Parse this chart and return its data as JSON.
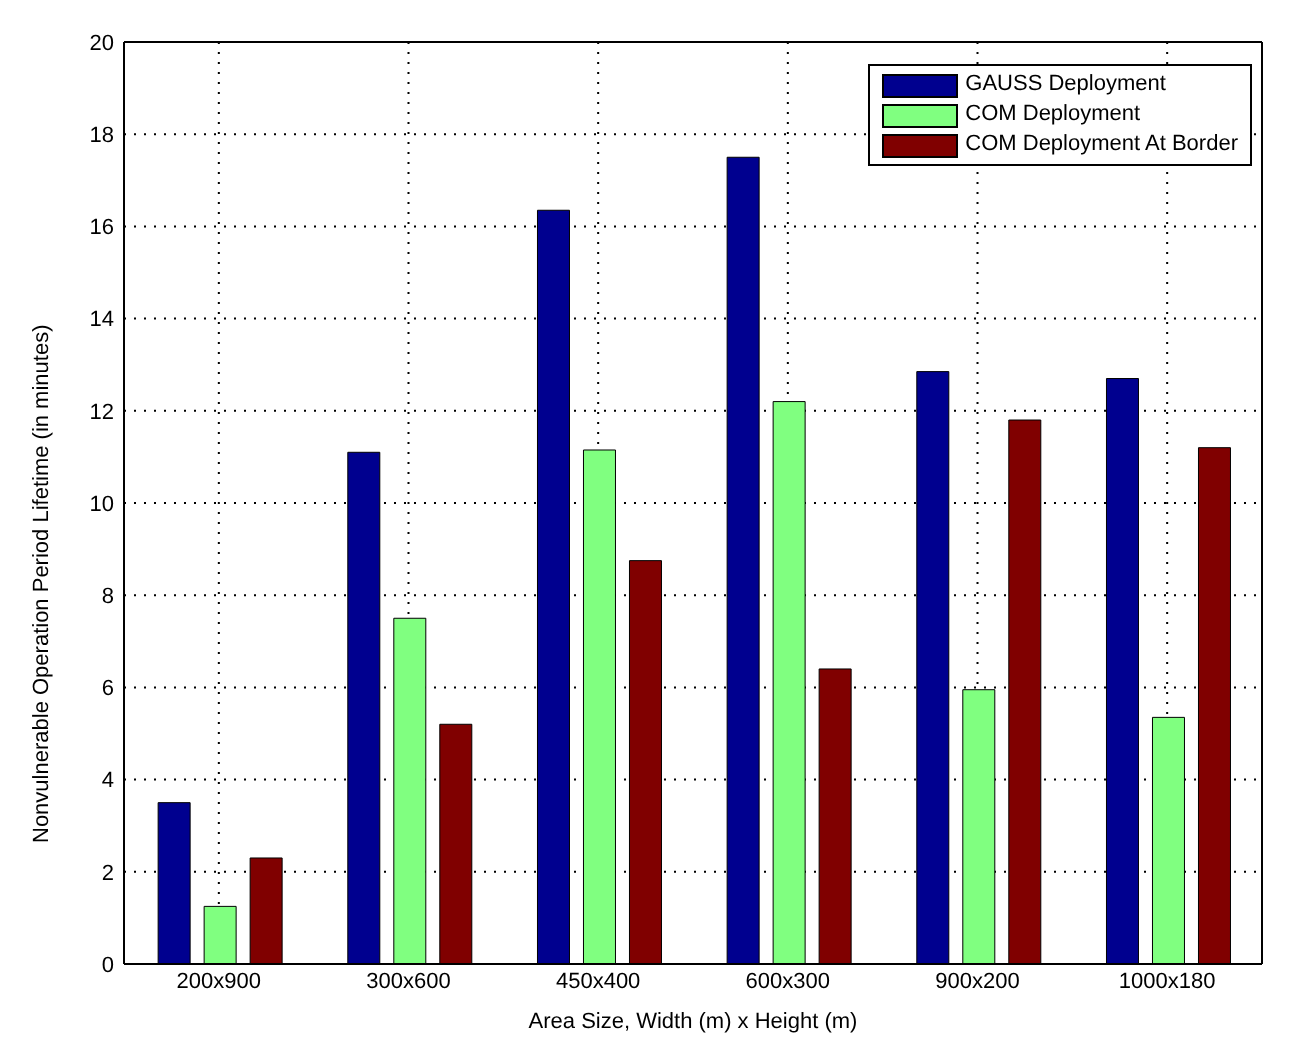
{
  "chart_data": {
    "type": "bar",
    "xlabel": "Area Size, Width (m) x Height (m)",
    "ylabel": "Nonvulnerable Operation Period Lifetime (in minutes)",
    "categories": [
      "200x900",
      "300x600",
      "450x400",
      "600x300",
      "900x200",
      "1000x180"
    ],
    "series": [
      {
        "name": "GAUSS Deployment",
        "color": "#00008f",
        "values": [
          3.5,
          11.1,
          16.35,
          17.5,
          12.85,
          12.7
        ]
      },
      {
        "name": "COM Deployment",
        "color": "#80ff80",
        "values": [
          1.25,
          7.5,
          11.15,
          12.2,
          5.95,
          5.35
        ]
      },
      {
        "name": "COM Deployment At Border",
        "color": "#800000",
        "values": [
          2.3,
          5.2,
          8.75,
          6.4,
          11.8,
          11.2
        ]
      }
    ],
    "ylim": [
      0,
      20
    ],
    "yticks": [
      0,
      2,
      4,
      6,
      8,
      10,
      12,
      14,
      16,
      18,
      20
    ],
    "grid": true,
    "legend": "top right"
  }
}
